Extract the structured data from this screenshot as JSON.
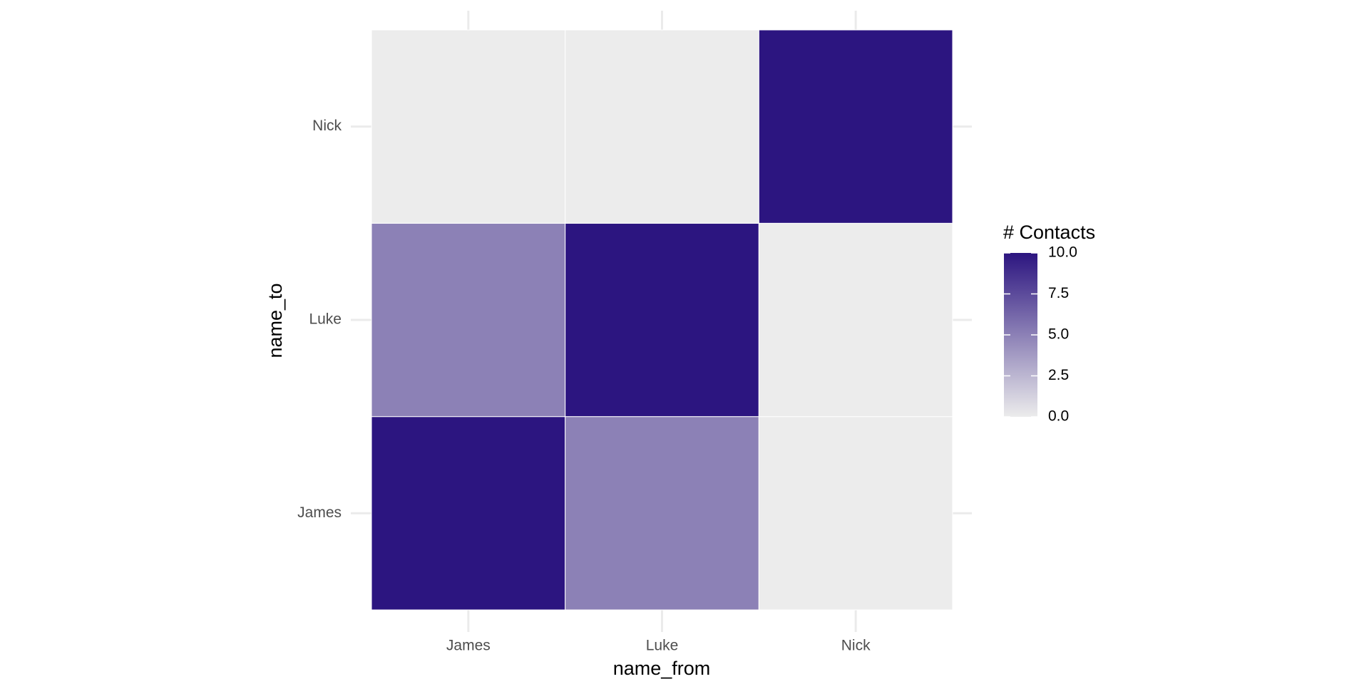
{
  "chart_data": {
    "type": "heatmap",
    "x_label": "name_from",
    "y_label": "name_to",
    "x_categories": [
      "James",
      "Luke",
      "Nick"
    ],
    "y_categories": [
      "James",
      "Luke",
      "Nick"
    ],
    "values": [
      [
        10,
        5,
        0
      ],
      [
        5,
        10,
        0
      ],
      [
        0,
        0,
        10
      ]
    ],
    "legend_title": "# Contacts",
    "clim": [
      0,
      10
    ],
    "cticks": [
      {
        "value": 0,
        "label": "0.0"
      },
      {
        "value": 2.5,
        "label": "2.5"
      },
      {
        "value": 5,
        "label": "5.0"
      },
      {
        "value": 7.5,
        "label": "7.5"
      },
      {
        "value": 10,
        "label": "10.0"
      }
    ],
    "low_color": "#ececec",
    "high_color": "#2c1580",
    "grid": true,
    "legend_position": "right"
  }
}
